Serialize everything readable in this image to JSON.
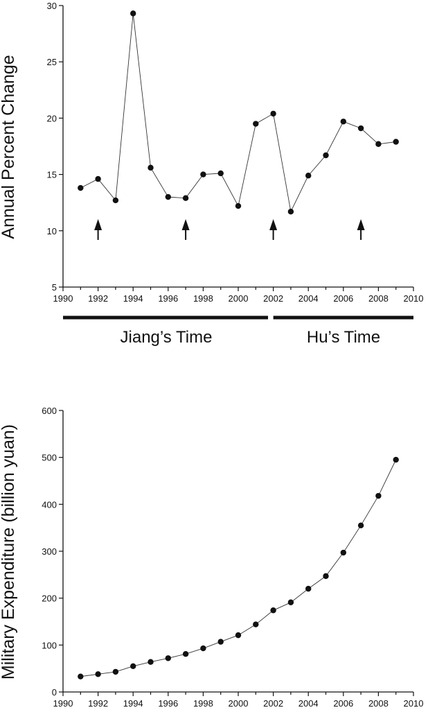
{
  "chart_data": [
    {
      "type": "line",
      "title": "",
      "xlabel": "",
      "ylabel": "Annual Percent Change",
      "xlim": [
        1990,
        2010
      ],
      "ylim": [
        5,
        30
      ],
      "xticks": [
        1990,
        1992,
        1994,
        1996,
        1998,
        2000,
        2002,
        2004,
        2006,
        2008,
        2010
      ],
      "yticks": [
        5,
        10,
        15,
        20,
        25,
        30
      ],
      "x": [
        1991,
        1992,
        1993,
        1994,
        1995,
        1996,
        1997,
        1998,
        1999,
        2000,
        2001,
        2002,
        2003,
        2004,
        2005,
        2006,
        2007,
        2008,
        2009
      ],
      "values": [
        13.8,
        14.6,
        12.7,
        29.3,
        15.6,
        13.0,
        12.9,
        15.0,
        15.1,
        12.2,
        19.5,
        20.4,
        11.7,
        14.9,
        16.7,
        19.7,
        19.1,
        17.7,
        17.9
      ],
      "annotations": {
        "arrows_at": [
          1992,
          1997,
          2002,
          2007
        ],
        "eras": [
          {
            "label": "Jiang’s Time",
            "from": 1990,
            "to": 2001.7
          },
          {
            "label": "Hu’s Time",
            "from": 2002,
            "to": 2010
          }
        ]
      },
      "grid": false
    },
    {
      "type": "line",
      "title": "",
      "xlabel": "",
      "ylabel": "Military Expenditure (billion yuan)",
      "xlim": [
        1990,
        2010
      ],
      "ylim": [
        0,
        600
      ],
      "xticks": [
        1990,
        1992,
        1994,
        1996,
        1998,
        2000,
        2002,
        2004,
        2006,
        2008,
        2010
      ],
      "yticks": [
        0,
        100,
        200,
        300,
        400,
        500,
        600
      ],
      "x": [
        1991,
        1992,
        1993,
        1994,
        1995,
        1996,
        1997,
        1998,
        1999,
        2000,
        2001,
        2002,
        2003,
        2004,
        2005,
        2006,
        2007,
        2008,
        2009
      ],
      "values": [
        33,
        38,
        43,
        55,
        64,
        72,
        81,
        93,
        107,
        121,
        144,
        174,
        191,
        220,
        247,
        297,
        355,
        418,
        495
      ],
      "grid": false
    }
  ]
}
